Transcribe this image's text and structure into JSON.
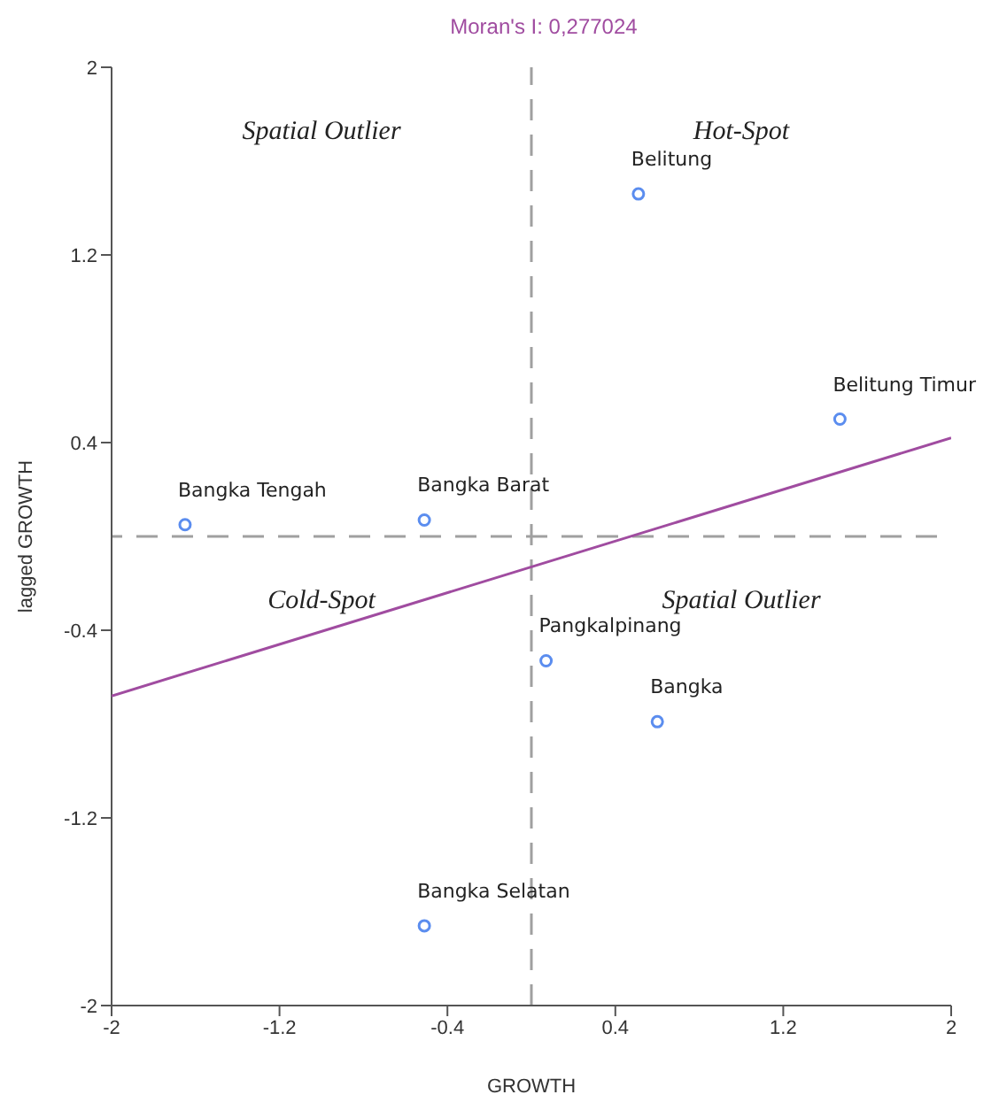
{
  "chart_data": {
    "type": "scatter",
    "title": "Moran's I: 0,277024",
    "xlabel": "GROWTH",
    "ylabel": "lagged GROWTH",
    "xlim": [
      -2,
      2
    ],
    "xticks": [
      -2,
      -1.2,
      -0.4,
      0.4,
      1.2,
      2
    ],
    "ylim": [
      -2,
      2
    ],
    "yticks": [
      -2,
      -1.2,
      -0.4,
      0.4,
      1.2,
      2
    ],
    "grid": false,
    "legend": false,
    "marker": "circle",
    "series": [
      {
        "color": "#5b8def",
        "x": [
          -1.65,
          -0.51,
          0.51,
          1.47,
          0.07,
          0.6,
          -0.51
        ],
        "values": [
          0.05,
          0.07,
          1.46,
          0.5,
          -0.53,
          -0.79,
          -1.66
        ]
      },
      {
        "type": "line",
        "marker": "none",
        "color": "#a04ca0",
        "x": [
          -2,
          2
        ],
        "values": [
          -0.68,
          0.42
        ]
      }
    ],
    "ref_lines": [
      {
        "axis": "x",
        "value": 0,
        "color": "#a0a0a0",
        "line_style": "dashed"
      },
      {
        "axis": "y",
        "value": 0,
        "color": "#a0a0a0",
        "line_style": "dashed"
      }
    ],
    "annotations": [
      "Spatial Outlier",
      "Hot-Spot",
      "Cold-Spot",
      "Spatial Outlier",
      {
        "text": "Bangka Tengah",
        "x": -1.65,
        "y": 0.05
      },
      {
        "text": "Bangka Barat",
        "x": -0.51,
        "y": 0.07
      },
      {
        "text": "Belitung",
        "x": 0.51,
        "y": 1.46
      },
      {
        "text": "Belitung Timur",
        "x": 1.47,
        "y": 0.5
      },
      {
        "text": "Bangka",
        "x": 0.6,
        "y": -0.79
      },
      {
        "text": "Pangkalpinang",
        "x": 0.07,
        "y": -0.53
      },
      {
        "text": "Bangka Selatan",
        "x": -0.51,
        "y": -1.66
      }
    ]
  }
}
